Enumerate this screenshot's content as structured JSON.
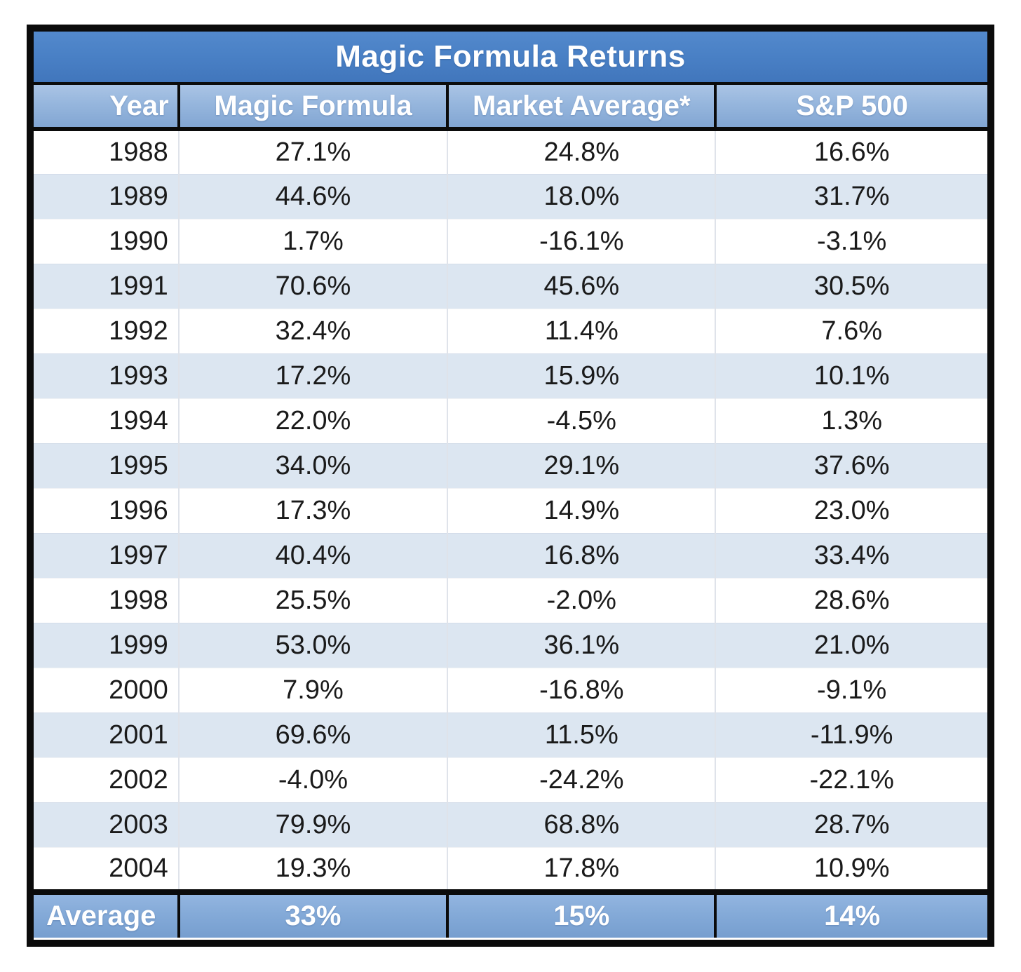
{
  "table": {
    "title": "Magic Formula Returns",
    "columns": [
      "Year",
      "Magic Formula",
      "Market Average*",
      "S&P 500"
    ],
    "rows": [
      {
        "year": "1988",
        "magic_formula": "27.1%",
        "market_average": "24.8%",
        "sp500": "16.6%"
      },
      {
        "year": "1989",
        "magic_formula": "44.6%",
        "market_average": "18.0%",
        "sp500": "31.7%"
      },
      {
        "year": "1990",
        "magic_formula": "1.7%",
        "market_average": "-16.1%",
        "sp500": "-3.1%"
      },
      {
        "year": "1991",
        "magic_formula": "70.6%",
        "market_average": "45.6%",
        "sp500": "30.5%"
      },
      {
        "year": "1992",
        "magic_formula": "32.4%",
        "market_average": "11.4%",
        "sp500": "7.6%"
      },
      {
        "year": "1993",
        "magic_formula": "17.2%",
        "market_average": "15.9%",
        "sp500": "10.1%"
      },
      {
        "year": "1994",
        "magic_formula": "22.0%",
        "market_average": "-4.5%",
        "sp500": "1.3%"
      },
      {
        "year": "1995",
        "magic_formula": "34.0%",
        "market_average": "29.1%",
        "sp500": "37.6%"
      },
      {
        "year": "1996",
        "magic_formula": "17.3%",
        "market_average": "14.9%",
        "sp500": "23.0%"
      },
      {
        "year": "1997",
        "magic_formula": "40.4%",
        "market_average": "16.8%",
        "sp500": "33.4%"
      },
      {
        "year": "1998",
        "magic_formula": "25.5%",
        "market_average": "-2.0%",
        "sp500": "28.6%"
      },
      {
        "year": "1999",
        "magic_formula": "53.0%",
        "market_average": "36.1%",
        "sp500": "21.0%"
      },
      {
        "year": "2000",
        "magic_formula": "7.9%",
        "market_average": "-16.8%",
        "sp500": "-9.1%"
      },
      {
        "year": "2001",
        "magic_formula": "69.6%",
        "market_average": "11.5%",
        "sp500": "-11.9%"
      },
      {
        "year": "2002",
        "magic_formula": "-4.0%",
        "market_average": "-24.2%",
        "sp500": "-22.1%"
      },
      {
        "year": "2003",
        "magic_formula": "79.9%",
        "market_average": "68.8%",
        "sp500": "28.7%"
      },
      {
        "year": "2004",
        "magic_formula": "19.3%",
        "market_average": "17.8%",
        "sp500": "10.9%"
      }
    ],
    "footer": {
      "label": "Average",
      "magic_formula": "33%",
      "market_average": "15%",
      "sp500": "14%"
    }
  },
  "colors": {
    "title_bar_blue": "#4a81c6",
    "header_blue": "#96b6dd",
    "stripe_blue": "#dce6f1",
    "average_row_blue": "#84aad8",
    "border_black": "#0b0b0b",
    "text_dark": "#1a1a1a",
    "text_white": "#ffffff"
  },
  "chart_data": {
    "type": "table",
    "title": "Magic Formula Returns",
    "columns": [
      "Year",
      "Magic Formula",
      "Market Average*",
      "S&P 500"
    ],
    "units": "percent annual return",
    "rows": [
      [
        1988,
        27.1,
        24.8,
        16.6
      ],
      [
        1989,
        44.6,
        18.0,
        31.7
      ],
      [
        1990,
        1.7,
        -16.1,
        -3.1
      ],
      [
        1991,
        70.6,
        45.6,
        30.5
      ],
      [
        1992,
        32.4,
        11.4,
        7.6
      ],
      [
        1993,
        17.2,
        15.9,
        10.1
      ],
      [
        1994,
        22.0,
        -4.5,
        1.3
      ],
      [
        1995,
        34.0,
        29.1,
        37.6
      ],
      [
        1996,
        17.3,
        14.9,
        23.0
      ],
      [
        1997,
        40.4,
        16.8,
        33.4
      ],
      [
        1998,
        25.5,
        -2.0,
        28.6
      ],
      [
        1999,
        53.0,
        36.1,
        21.0
      ],
      [
        2000,
        7.9,
        -16.8,
        -9.1
      ],
      [
        2001,
        69.6,
        11.5,
        -11.9
      ],
      [
        2002,
        -4.0,
        -24.2,
        -22.1
      ],
      [
        2003,
        79.9,
        68.8,
        28.7
      ],
      [
        2004,
        19.3,
        17.8,
        10.9
      ]
    ],
    "footer": {
      "label": "Average",
      "values": [
        33,
        15,
        14
      ]
    }
  }
}
